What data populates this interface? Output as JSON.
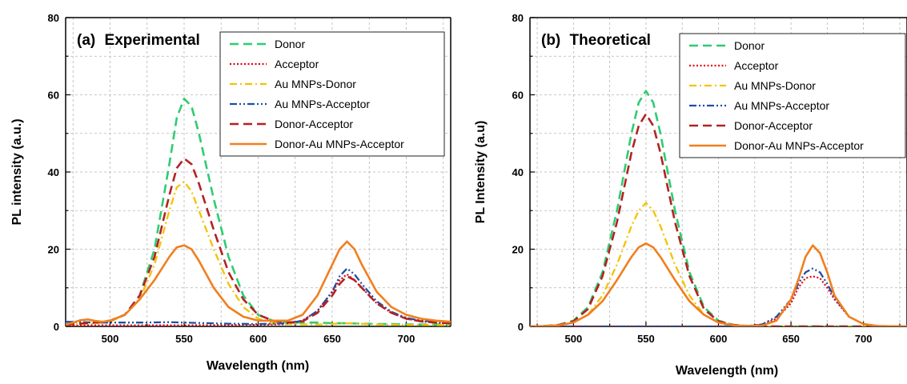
{
  "colors": {
    "donor": "#2ecc71",
    "acceptor": "#e3000f",
    "au_donor": "#f5c200",
    "au_acceptor": "#1f4fa3",
    "donor_acceptor": "#b22222",
    "donor_au_acceptor": "#f07f1e",
    "grid": "#b5b5b5"
  },
  "legend_labels": [
    "Donor",
    "Acceptor",
    "Au MNPs-Donor",
    "Au MNPs-Acceptor",
    "Donor-Acceptor",
    "Donor-Au MNPs-Acceptor"
  ],
  "panels": [
    {
      "title_prefix": "(a)",
      "title_word": "Experimental",
      "ylabel": "PL intensity (a.u.)",
      "xlabel": "Wavelength (nm)"
    },
    {
      "title_prefix": "(b)",
      "title_word": "Theoretical",
      "ylabel": "PL Intensity (a.u)",
      "xlabel": "Wavelength (nm)"
    }
  ],
  "chart_data": [
    {
      "type": "line",
      "title": "(a) Experimental",
      "xlabel": "Wavelength (nm)",
      "ylabel": "PL intensity (a.u.)",
      "xlim": [
        470,
        730
      ],
      "ylim": [
        0,
        80
      ],
      "xticks": [
        500,
        550,
        600,
        650,
        700
      ],
      "yticks": [
        0,
        20,
        40,
        60,
        80
      ],
      "grid": true,
      "legend": "top-right",
      "series": [
        {
          "name": "Donor",
          "style": "dash",
          "color_key": "donor",
          "x": [
            470,
            480,
            490,
            500,
            510,
            520,
            530,
            540,
            545,
            550,
            555,
            560,
            570,
            580,
            590,
            600,
            610,
            620,
            630,
            640,
            650,
            660,
            670,
            680,
            690,
            700,
            710,
            720,
            730
          ],
          "y": [
            0.5,
            0.7,
            1.0,
            1.5,
            3,
            8,
            20,
            42,
            54,
            59,
            57,
            50,
            33,
            18,
            8,
            3,
            1.5,
            1,
            1,
            1,
            0.8,
            0.8,
            0.7,
            0.6,
            0.6,
            0.5,
            0.5,
            0.5,
            0.5
          ]
        },
        {
          "name": "Acceptor",
          "style": "dot",
          "color_key": "acceptor",
          "x": [
            470,
            500,
            550,
            600,
            620,
            630,
            640,
            650,
            655,
            660,
            665,
            670,
            680,
            690,
            700,
            710,
            720,
            730
          ],
          "y": [
            0.3,
            0.3,
            0.3,
            0.4,
            0.6,
            1.5,
            4,
            9,
            12,
            13.5,
            12,
            10,
            6,
            3.5,
            2,
            1.3,
            1,
            0.8
          ]
        },
        {
          "name": "Au MNPs-Donor",
          "style": "dashdot",
          "color_key": "au_donor",
          "x": [
            470,
            480,
            490,
            500,
            510,
            520,
            530,
            540,
            545,
            550,
            555,
            560,
            570,
            580,
            590,
            600,
            610,
            620,
            640,
            660,
            680,
            700,
            730
          ],
          "y": [
            0.5,
            0.6,
            0.8,
            1.2,
            3,
            7,
            16,
            30,
            36,
            37.5,
            35,
            30,
            20,
            11,
            5,
            2,
            1,
            0.6,
            0.5,
            0.8,
            0.5,
            0.4,
            0.3
          ]
        },
        {
          "name": "Au MNPs-Acceptor",
          "style": "dashdotdot",
          "color_key": "au_acceptor",
          "x": [
            470,
            480,
            490,
            500,
            520,
            540,
            550,
            560,
            580,
            600,
            620,
            630,
            640,
            650,
            655,
            660,
            665,
            670,
            680,
            690,
            700,
            710,
            720,
            730
          ],
          "y": [
            1.2,
            1.1,
            1.0,
            1.0,
            1.0,
            1.1,
            1.0,
            0.9,
            0.7,
            0.6,
            0.8,
            1.5,
            4,
            9,
            13,
            15,
            13.5,
            11,
            6.5,
            3.8,
            2.2,
            1.5,
            1.2,
            1.0
          ]
        },
        {
          "name": "Donor-Acceptor",
          "style": "dash",
          "color_key": "donor_acceptor",
          "x": [
            470,
            480,
            490,
            500,
            510,
            520,
            530,
            540,
            545,
            550,
            555,
            560,
            570,
            580,
            590,
            600,
            610,
            620,
            630,
            640,
            650,
            655,
            660,
            665,
            670,
            680,
            690,
            700,
            710,
            720,
            730
          ],
          "y": [
            0.5,
            0.7,
            1.0,
            1.5,
            3,
            8,
            18,
            34,
            41,
            43.5,
            42,
            37,
            25,
            14,
            7,
            3,
            1.5,
            1,
            1.3,
            3.5,
            8,
            11,
            13,
            12,
            10,
            6,
            3.5,
            2,
            1.3,
            1,
            0.8
          ]
        },
        {
          "name": "Donor-Au MNPs-Acceptor",
          "style": "solid",
          "color_key": "donor_au_acceptor",
          "x": [
            470,
            475,
            480,
            485,
            490,
            495,
            500,
            510,
            520,
            530,
            540,
            545,
            550,
            555,
            560,
            570,
            580,
            590,
            600,
            610,
            620,
            630,
            640,
            650,
            655,
            660,
            665,
            670,
            680,
            690,
            700,
            710,
            720,
            730
          ],
          "y": [
            0.5,
            1.0,
            1.6,
            1.8,
            1.4,
            1.2,
            1.5,
            3,
            7,
            12,
            18,
            20.5,
            21,
            20,
            17,
            10,
            5,
            2.5,
            1.5,
            1.5,
            1.5,
            3,
            8,
            16,
            20,
            22,
            20,
            16,
            9,
            5,
            3,
            2,
            1.5,
            1.2
          ]
        }
      ]
    },
    {
      "type": "line",
      "title": "(b) Theoretical",
      "xlabel": "Wavelength (nm)",
      "ylabel": "PL Intensity (a.u)",
      "xlim": [
        470,
        730
      ],
      "ylim": [
        0,
        80
      ],
      "xticks": [
        500,
        550,
        600,
        650,
        700
      ],
      "yticks": [
        0,
        20,
        40,
        60,
        80
      ],
      "grid": true,
      "legend": "top-right",
      "series": [
        {
          "name": "Donor",
          "style": "dash",
          "color_key": "donor",
          "x": [
            470,
            480,
            490,
            500,
            510,
            520,
            530,
            540,
            545,
            550,
            555,
            560,
            570,
            580,
            590,
            600,
            610,
            620,
            630,
            650,
            670,
            700,
            730
          ],
          "y": [
            0,
            0.1,
            0.4,
            1.5,
            5,
            14,
            30,
            50,
            58,
            61,
            58,
            50,
            30,
            14,
            5,
            1.5,
            0.4,
            0.1,
            0,
            0,
            0,
            0,
            0
          ]
        },
        {
          "name": "Acceptor",
          "style": "dot",
          "color_key": "acceptor",
          "x": [
            470,
            600,
            620,
            630,
            640,
            650,
            655,
            660,
            665,
            670,
            675,
            680,
            690,
            700,
            710,
            730
          ],
          "y": [
            0,
            0,
            0.1,
            0.5,
            2,
            6,
            10,
            12.5,
            13,
            12.5,
            10,
            7,
            2.5,
            0.6,
            0.1,
            0
          ]
        },
        {
          "name": "Au MNPs-Donor",
          "style": "dashdot",
          "color_key": "au_donor",
          "x": [
            470,
            480,
            490,
            500,
            510,
            520,
            530,
            540,
            545,
            550,
            555,
            560,
            570,
            580,
            590,
            600,
            610,
            620,
            630,
            650,
            700,
            730
          ],
          "y": [
            0,
            0.1,
            0.3,
            1,
            3,
            8,
            16,
            26,
            30,
            32,
            30,
            26,
            16,
            8,
            3,
            1,
            0.3,
            0.1,
            0,
            0,
            0,
            0
          ]
        },
        {
          "name": "Au MNPs-Acceptor",
          "style": "dashdotdot",
          "color_key": "au_acceptor",
          "x": [
            470,
            600,
            620,
            630,
            640,
            650,
            655,
            660,
            665,
            670,
            675,
            680,
            690,
            700,
            710,
            730
          ],
          "y": [
            0,
            0,
            0.1,
            0.5,
            2.5,
            7,
            11,
            14,
            15,
            14,
            11,
            7.5,
            2.5,
            0.6,
            0.1,
            0
          ]
        },
        {
          "name": "Donor-Acceptor",
          "style": "dash",
          "color_key": "donor_acceptor",
          "x": [
            470,
            480,
            490,
            500,
            510,
            520,
            530,
            540,
            545,
            550,
            555,
            560,
            570,
            580,
            590,
            600,
            610,
            620,
            630,
            650,
            670,
            700,
            730
          ],
          "y": [
            0,
            0.1,
            0.4,
            1.3,
            4.5,
            13,
            27,
            45,
            52,
            55,
            52,
            45,
            27,
            13,
            4.5,
            1.3,
            0.4,
            0.1,
            0,
            0,
            0,
            0,
            0
          ]
        },
        {
          "name": "Donor-Au MNPs-Acceptor",
          "style": "solid",
          "color_key": "donor_au_acceptor",
          "x": [
            470,
            480,
            490,
            500,
            510,
            520,
            530,
            540,
            545,
            550,
            555,
            560,
            570,
            580,
            590,
            600,
            610,
            620,
            630,
            640,
            650,
            655,
            660,
            665,
            670,
            675,
            680,
            690,
            700,
            710,
            730
          ],
          "y": [
            0,
            0.1,
            0.3,
            1,
            3,
            6.5,
            12,
            18,
            20.5,
            21.5,
            20.5,
            18,
            12,
            6.5,
            3,
            1,
            0.3,
            0.1,
            0.2,
            1.5,
            7,
            12,
            18,
            21,
            19,
            14,
            8,
            2.5,
            0.6,
            0.1,
            0
          ]
        }
      ]
    }
  ]
}
